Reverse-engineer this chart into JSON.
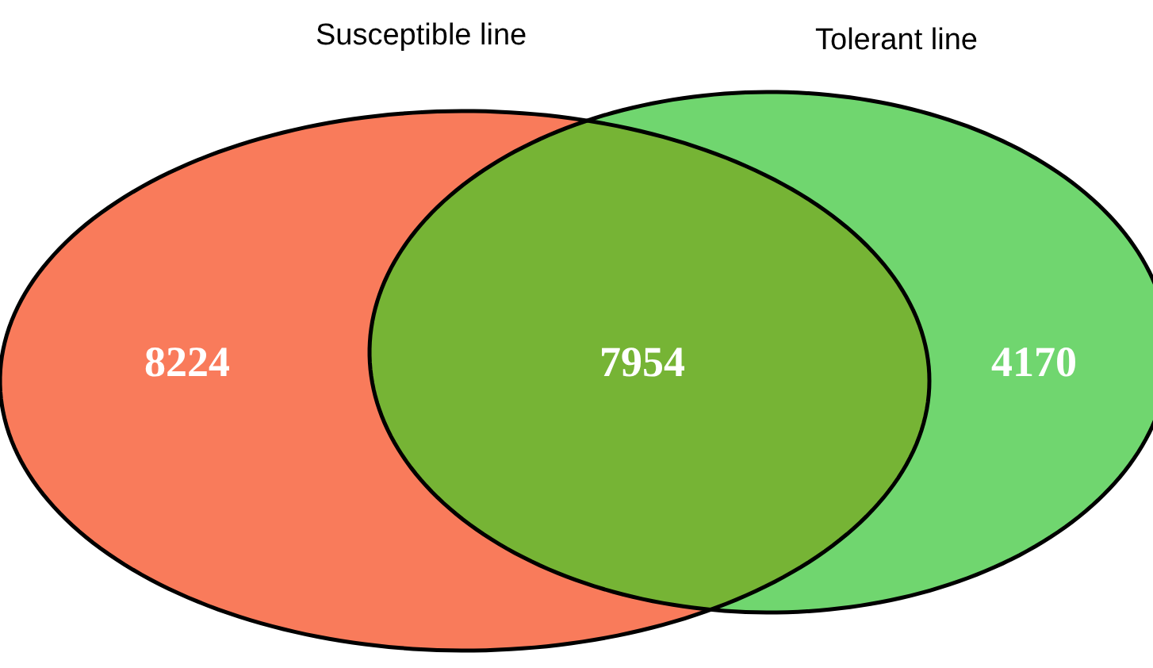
{
  "chart_data": {
    "type": "other",
    "categories": [
      null,
      null,
      null
    ],
    "values": [
      8224,
      7954,
      4170
    ],
    "colors": [
      "#f97b5b",
      "#76b435",
      "#70d66f"
    ],
    "annotations": [
      "Susceptible line",
      "Tolerant line"
    ],
    "data_labels": true
  }
}
